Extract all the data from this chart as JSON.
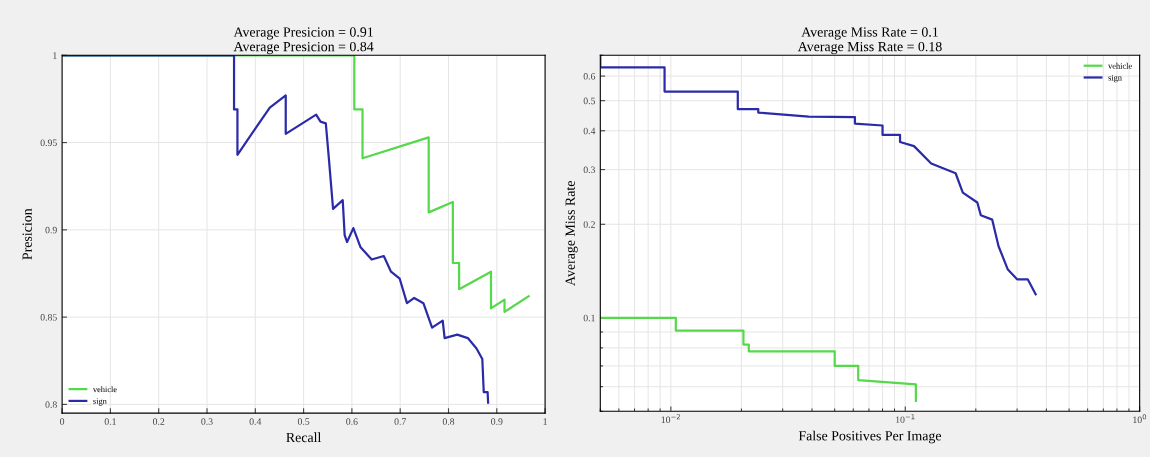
{
  "chart_data": [
    {
      "type": "line",
      "title": "Average Presicion = 0.91\nAverage Presicion = 0.84",
      "xlabel": "Recall",
      "ylabel": "Presicion",
      "xlim": [
        0,
        1
      ],
      "ylim": [
        0.795,
        1
      ],
      "xticks": [
        0,
        0.1,
        0.2,
        0.3,
        0.4,
        0.5,
        0.6,
        0.7,
        0.8,
        0.9,
        1
      ],
      "yticks": [
        0.8,
        0.85,
        0.9,
        0.95,
        1
      ],
      "grid": true,
      "legend": "lower left",
      "series": [
        {
          "name": "vehicle",
          "color": "#55d84a",
          "x": [
            0,
            0.605,
            0.605,
            0.622,
            0.622,
            0.759,
            0.759,
            0.809,
            0.809,
            0.822,
            0.822,
            0.888,
            0.888,
            0.916,
            0.916,
            0.966
          ],
          "values": [
            1,
            1,
            0.969,
            0.969,
            0.941,
            0.953,
            0.91,
            0.916,
            0.881,
            0.881,
            0.866,
            0.876,
            0.855,
            0.86,
            0.853,
            0.862
          ]
        },
        {
          "name": "sign",
          "color": "#2b2ba8",
          "x": [
            0,
            0.356,
            0.356,
            0.363,
            0.363,
            0.4,
            0.43,
            0.463,
            0.463,
            0.526,
            0.535,
            0.546,
            0.552,
            0.561,
            0.581,
            0.585,
            0.59,
            0.603,
            0.618,
            0.641,
            0.666,
            0.681,
            0.699,
            0.714,
            0.729,
            0.748,
            0.766,
            0.788,
            0.792,
            0.818,
            0.84,
            0.858,
            0.87,
            0.873,
            0.881,
            0.882
          ],
          "values": [
            1,
            1,
            0.969,
            0.969,
            0.943,
            0.958,
            0.97,
            0.977,
            0.955,
            0.966,
            0.962,
            0.961,
            0.942,
            0.912,
            0.917,
            0.897,
            0.893,
            0.901,
            0.89,
            0.883,
            0.885,
            0.876,
            0.872,
            0.858,
            0.861,
            0.858,
            0.844,
            0.848,
            0.838,
            0.84,
            0.838,
            0.832,
            0.826,
            0.807,
            0.807,
            0.801
          ]
        }
      ]
    },
    {
      "type": "line",
      "title": "Average Miss Rate = 0.1\nAverage Miss Rate = 0.18",
      "xlabel": "False Positives Per Image",
      "ylabel": "Average Miss Rate",
      "log": "xy",
      "xlim": [
        0.005,
        1
      ],
      "ylim": [
        0.05,
        0.7
      ],
      "xticks": [
        {
          "value": 0.01,
          "label": "10$^{−2}$"
        },
        {
          "value": 0.1,
          "label": "10$^{−1}$"
        },
        {
          "value": 1,
          "label": "10$^{0}$"
        }
      ],
      "yticks": [
        0.1,
        0.2,
        0.3,
        0.4,
        0.5,
        0.6
      ],
      "grid": true,
      "legend": "top right",
      "series": [
        {
          "name": "vehicle",
          "color": "#55d84a",
          "x": [
            0.005,
            0.0105,
            0.0105,
            0.0204,
            0.0204,
            0.0215,
            0.0215,
            0.05,
            0.05,
            0.063,
            0.063,
            0.111,
            0.111
          ],
          "values": [
            0.1,
            0.1,
            0.091,
            0.091,
            0.082,
            0.082,
            0.078,
            0.078,
            0.07,
            0.07,
            0.063,
            0.061,
            0.054
          ]
        },
        {
          "name": "sign",
          "color": "#2b2ba8",
          "x": [
            0.005,
            0.005,
            0.0094,
            0.0094,
            0.0193,
            0.0193,
            0.0236,
            0.0236,
            0.0387,
            0.061,
            0.061,
            0.08,
            0.08,
            0.095,
            0.095,
            0.109,
            0.129,
            0.164,
            0.176,
            0.203,
            0.21,
            0.235,
            0.25,
            0.274,
            0.3,
            0.333,
            0.36
          ],
          "values": [
            0.69,
            0.64,
            0.64,
            0.535,
            0.535,
            0.47,
            0.47,
            0.458,
            0.444,
            0.443,
            0.422,
            0.416,
            0.388,
            0.388,
            0.368,
            0.357,
            0.314,
            0.292,
            0.253,
            0.235,
            0.214,
            0.207,
            0.17,
            0.143,
            0.133,
            0.133,
            0.119
          ]
        }
      ]
    }
  ]
}
